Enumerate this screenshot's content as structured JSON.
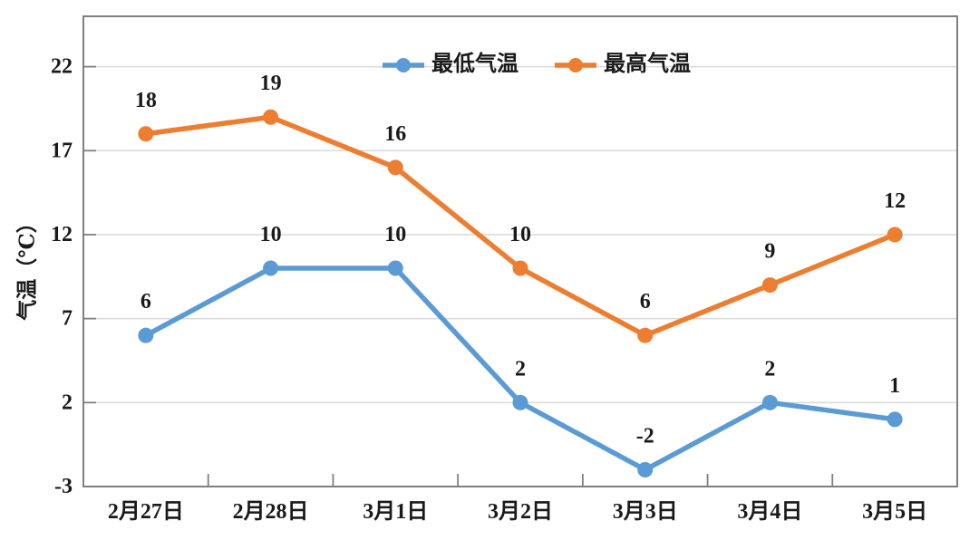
{
  "chart_data": {
    "type": "line",
    "title": "",
    "ylabel": "气温（℃）",
    "xlabel": "",
    "categories": [
      "2月27日",
      "2月28日",
      "3月1日",
      "3月2日",
      "3月3日",
      "3月4日",
      "3月5日"
    ],
    "series": [
      {
        "name": "最低气温",
        "color": "#5B9BD5",
        "values": [
          6,
          10,
          10,
          2,
          -2,
          2,
          1
        ]
      },
      {
        "name": "最高气温",
        "color": "#ED7D31",
        "values": [
          18,
          19,
          16,
          10,
          6,
          9,
          12
        ]
      }
    ],
    "yticks": [
      22,
      17,
      12,
      7,
      2,
      -3
    ],
    "ylim": [
      -3,
      25
    ],
    "grid": true,
    "grid_on": "horizontal",
    "legend_position": "top-center",
    "data_labels": true
  },
  "style": {
    "background": "#FFFFFF",
    "grid_color": "#D9D9D9",
    "border_color": "#7F7F7F",
    "tick_color": "#7F7F7F",
    "text_color": "#1A1A1A",
    "min_series_color": "#5B9BD5",
    "max_series_color": "#ED7D31"
  }
}
